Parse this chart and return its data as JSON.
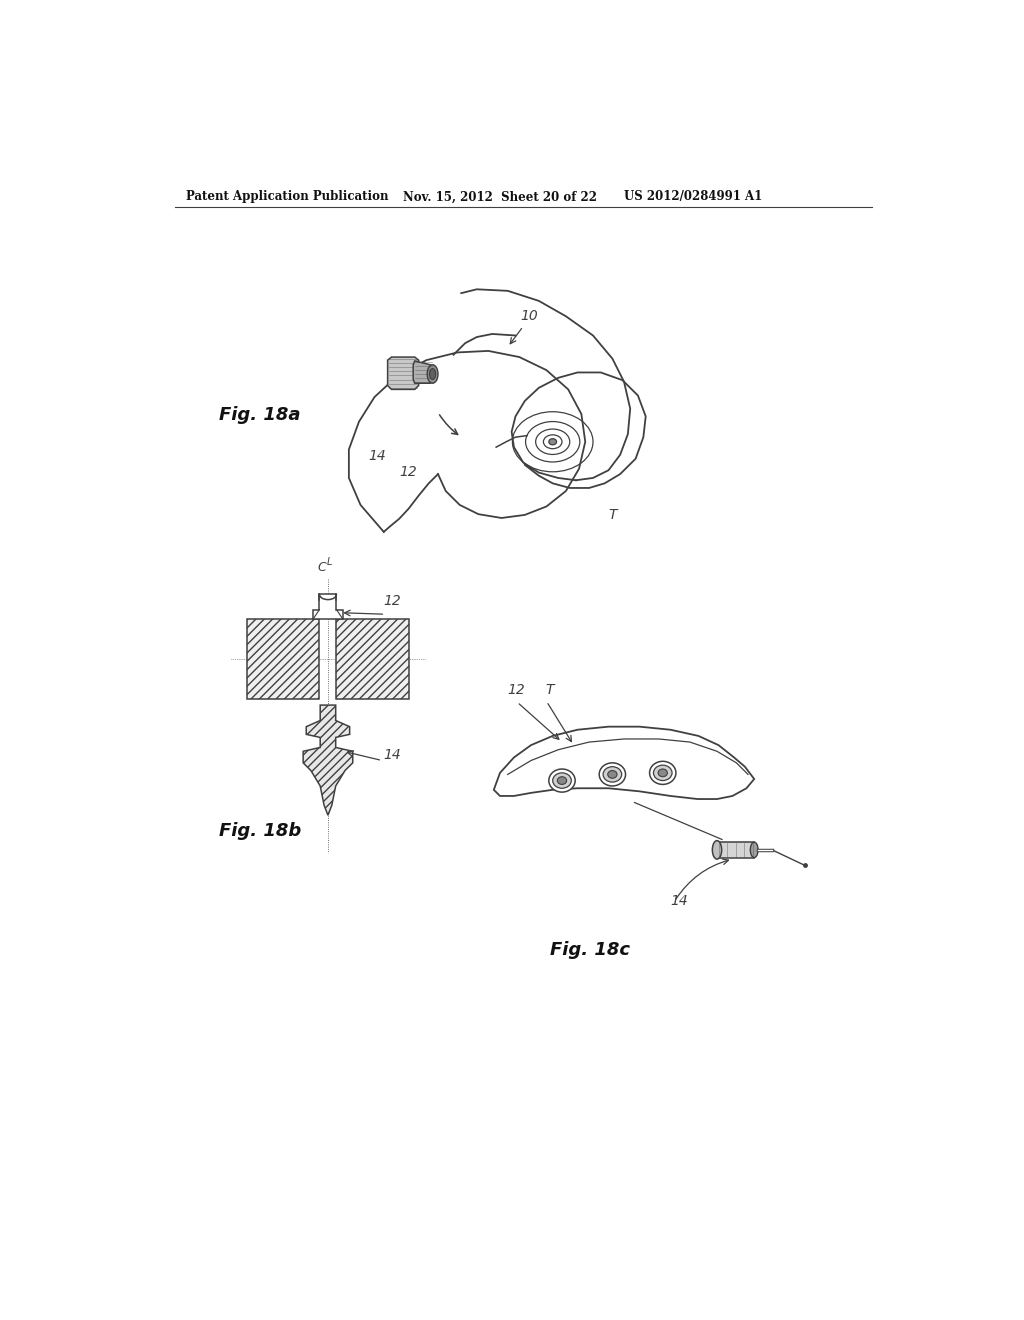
{
  "header_left": "Patent Application Publication",
  "header_mid": "Nov. 15, 2012  Sheet 20 of 22",
  "header_right": "US 2012/0284991 A1",
  "fig18a_label": "Fig. 18a",
  "fig18b_label": "Fig. 18b",
  "fig18c_label": "Fig. 18c",
  "bg_color": "#ffffff",
  "line_color": "#404040",
  "text_color": "#111111"
}
